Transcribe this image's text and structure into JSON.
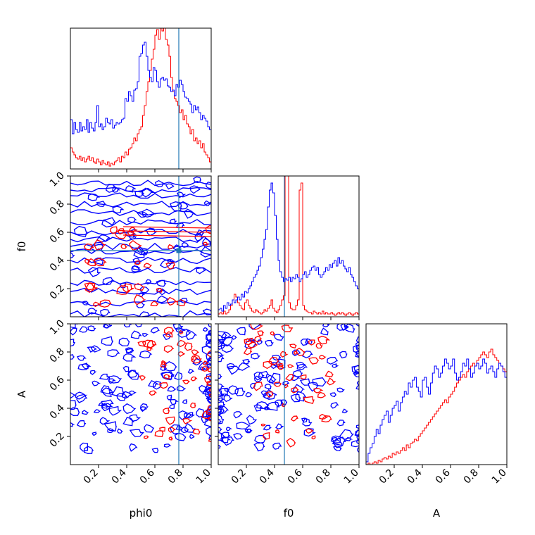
{
  "chart_data": {
    "type": "corner",
    "title": "",
    "parameters": [
      "phi0",
      "f0",
      "A"
    ],
    "truth": {
      "phi0": 0.77,
      "f0": 0.47
    },
    "colors": {
      "red_series": "#ff0000",
      "blue_series": "#0000ff",
      "truth_line": "#1f77b4",
      "truth_hline": "#2ca02c"
    },
    "ranges": {
      "phi0": [
        0,
        1
      ],
      "f0": [
        0,
        1
      ],
      "A": [
        0,
        1
      ]
    },
    "ticks": [
      "0.2",
      "0.4",
      "0.6",
      "0.8",
      "1.0"
    ],
    "tick_values": [
      0.2,
      0.4,
      0.6,
      0.8,
      1.0
    ],
    "histograms": {
      "phi0": {
        "blue": [
          0.35,
          0.25,
          0.33,
          0.28,
          0.26,
          0.33,
          0.27,
          0.3,
          0.28,
          0.35,
          0.26,
          0.33,
          0.29,
          0.27,
          0.33,
          0.45,
          0.3,
          0.32,
          0.28,
          0.3,
          0.36,
          0.33,
          0.32,
          0.35,
          0.29,
          0.31,
          0.33,
          0.32,
          0.33,
          0.35,
          0.36,
          0.5,
          0.48,
          0.55,
          0.52,
          0.48,
          0.56,
          0.57,
          0.62,
          0.8,
          0.82,
          0.88,
          0.9,
          0.8,
          0.7,
          0.65,
          0.62,
          0.72,
          0.7,
          0.62,
          0.58,
          0.64,
          0.65,
          0.63,
          0.64,
          0.59,
          0.58,
          0.55,
          0.56,
          0.52,
          0.6,
          0.58,
          0.63,
          0.6,
          0.55,
          0.51,
          0.5,
          0.48,
          0.46,
          0.4,
          0.45,
          0.42,
          0.44,
          0.4,
          0.35,
          0.38,
          0.36,
          0.34,
          0.3,
          0.28
        ],
        "red": [
          0.15,
          0.12,
          0.1,
          0.08,
          0.07,
          0.09,
          0.06,
          0.08,
          0.05,
          0.07,
          0.09,
          0.06,
          0.08,
          0.05,
          0.04,
          0.07,
          0.05,
          0.03,
          0.06,
          0.04,
          0.03,
          0.05,
          0.02,
          0.04,
          0.03,
          0.05,
          0.06,
          0.08,
          0.05,
          0.09,
          0.08,
          0.12,
          0.1,
          0.14,
          0.15,
          0.18,
          0.22,
          0.2,
          0.25,
          0.28,
          0.3,
          0.38,
          0.45,
          0.55,
          0.62,
          0.7,
          0.78,
          0.85,
          0.95,
          0.99,
          0.92,
          1.0,
          0.98,
          1.0,
          0.92,
          0.88,
          0.8,
          0.65,
          0.55,
          0.5,
          0.48,
          0.45,
          0.4,
          0.42,
          0.35,
          0.38,
          0.32,
          0.3,
          0.25,
          0.28,
          0.2,
          0.22,
          0.18,
          0.2,
          0.15,
          0.18,
          0.12,
          0.1,
          0.08,
          0.05
        ]
      },
      "f0": {
        "blue": [
          0.05,
          0.06,
          0.04,
          0.08,
          0.06,
          0.1,
          0.08,
          0.09,
          0.12,
          0.1,
          0.12,
          0.14,
          0.12,
          0.16,
          0.14,
          0.18,
          0.17,
          0.2,
          0.22,
          0.25,
          0.28,
          0.3,
          0.33,
          0.36,
          0.42,
          0.48,
          0.55,
          0.62,
          0.78,
          0.9,
          0.95,
          0.88,
          0.72,
          0.55,
          0.4,
          0.32,
          0.28,
          0.25,
          0.27,
          0.26,
          0.28,
          0.25,
          0.28,
          0.27,
          0.3,
          0.28,
          0.25,
          0.27,
          0.3,
          0.32,
          0.28,
          0.3,
          0.33,
          0.35,
          0.36,
          0.33,
          0.35,
          0.3,
          0.28,
          0.3,
          0.32,
          0.35,
          0.33,
          0.37,
          0.35,
          0.38,
          0.4,
          0.36,
          0.42,
          0.38,
          0.4,
          0.36,
          0.34,
          0.32,
          0.35,
          0.3,
          0.28,
          0.25,
          0.22,
          0.2
        ],
        "red": [
          0.02,
          0.03,
          0.02,
          0.04,
          0.02,
          0.03,
          0.05,
          0.08,
          0.12,
          0.16,
          0.14,
          0.1,
          0.08,
          0.06,
          0.05,
          0.1,
          0.12,
          0.08,
          0.06,
          0.04,
          0.03,
          0.05,
          0.04,
          0.03,
          0.02,
          0.03,
          0.05,
          0.04,
          0.06,
          0.08,
          0.12,
          0.06,
          0.04,
          0.03,
          0.05,
          0.08,
          0.12,
          0.15,
          1.0,
          1.0,
          0.1,
          0.06,
          0.05,
          0.05,
          0.08,
          0.12,
          0.9,
          0.95,
          0.08,
          0.05,
          0.04,
          0.03,
          0.03,
          0.02,
          0.04,
          0.03,
          0.02,
          0.03,
          0.02,
          0.04,
          0.02,
          0.03,
          0.02,
          0.02,
          0.03,
          0.02,
          0.01,
          0.02,
          0.03,
          0.02,
          0.03,
          0.02,
          0.01,
          0.02,
          0.03,
          0.02,
          0.01,
          0.02,
          0.03,
          0.02
        ]
      },
      "A": {
        "blue": [
          0.02,
          0.08,
          0.12,
          0.15,
          0.2,
          0.25,
          0.22,
          0.28,
          0.32,
          0.35,
          0.38,
          0.3,
          0.35,
          0.4,
          0.42,
          0.45,
          0.38,
          0.44,
          0.48,
          0.52,
          0.5,
          0.58,
          0.55,
          0.6,
          0.62,
          0.55,
          0.52,
          0.48,
          0.6,
          0.62,
          0.55,
          0.5,
          0.58,
          0.65,
          0.7,
          0.68,
          0.62,
          0.65,
          0.7,
          0.75,
          0.72,
          0.68,
          0.7,
          0.75,
          0.65,
          0.6,
          0.62,
          0.66,
          0.72,
          0.7,
          0.75,
          0.68,
          0.62,
          0.65,
          0.7,
          0.72,
          0.68,
          0.7,
          0.75,
          0.72,
          0.65,
          0.68,
          0.7,
          0.66,
          0.62,
          0.68,
          0.72,
          0.7,
          0.66,
          0.62
        ],
        "red": [
          0.0,
          0.01,
          0.0,
          0.01,
          0.02,
          0.01,
          0.03,
          0.02,
          0.04,
          0.05,
          0.04,
          0.06,
          0.05,
          0.08,
          0.07,
          0.09,
          0.08,
          0.1,
          0.12,
          0.1,
          0.14,
          0.12,
          0.15,
          0.16,
          0.18,
          0.17,
          0.2,
          0.22,
          0.24,
          0.26,
          0.28,
          0.3,
          0.32,
          0.34,
          0.36,
          0.38,
          0.4,
          0.42,
          0.44,
          0.46,
          0.44,
          0.48,
          0.5,
          0.52,
          0.55,
          0.58,
          0.6,
          0.62,
          0.64,
          0.62,
          0.66,
          0.68,
          0.7,
          0.72,
          0.7,
          0.74,
          0.76,
          0.78,
          0.8,
          0.78,
          0.76,
          0.8,
          0.82,
          0.78,
          0.76,
          0.74,
          0.72,
          0.7,
          0.68,
          0.66
        ]
      }
    },
    "contours": {
      "f0_vs_phi0": {
        "blue_bands_f0": [
          0.02,
          0.1,
          0.18,
          0.24,
          0.33,
          0.4,
          0.46,
          0.5,
          0.55,
          0.6,
          0.67,
          0.74,
          0.8,
          0.86,
          0.9,
          0.95
        ],
        "red_bands_f0": [
          0.1,
          0.2,
          0.38,
          0.5,
          0.6
        ]
      },
      "A_vs_phi0": {
        "density": "scattered",
        "blue_center_phi0": 0.6,
        "red_center_phi0": 0.8
      },
      "A_vs_f0": {
        "density": "scattered",
        "blue_center_f0": 0.5,
        "red_center_f0": 0.5
      }
    }
  }
}
